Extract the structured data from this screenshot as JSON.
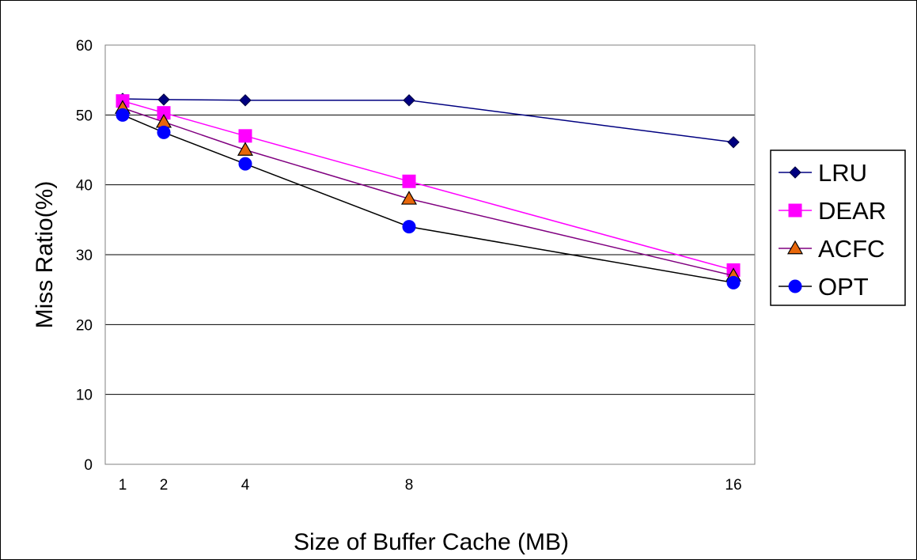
{
  "chart_data": {
    "type": "line",
    "xlabel": "Size of Buffer Cache (MB)",
    "ylabel": "Miss Ratio(%)",
    "ylim": [
      0,
      60
    ],
    "yticks": [
      0,
      10,
      20,
      30,
      40,
      50,
      60
    ],
    "x": [
      1,
      2,
      4,
      8,
      16
    ],
    "xtick_labels": [
      "1",
      "2",
      "4",
      "8",
      "16"
    ],
    "grid": "horizontal",
    "legend_position": "right",
    "series": [
      {
        "name": "LRU",
        "values": [
          52.3,
          52.2,
          52.1,
          52.1,
          46.1
        ],
        "color": "#000080",
        "marker": "diamond"
      },
      {
        "name": "DEAR",
        "values": [
          52.0,
          50.3,
          47.0,
          40.5,
          27.8
        ],
        "color": "#FF00FF",
        "marker": "square"
      },
      {
        "name": "ACFC",
        "values": [
          51.0,
          49.0,
          45.0,
          38.0,
          27.0
        ],
        "color": "#800080",
        "marker": "triangle",
        "marker_fill": "#E8670A"
      },
      {
        "name": "OPT",
        "values": [
          50.0,
          47.5,
          43.0,
          34.0,
          26.0
        ],
        "color": "#000000",
        "marker": "circle",
        "marker_fill": "#0000FF"
      }
    ]
  }
}
